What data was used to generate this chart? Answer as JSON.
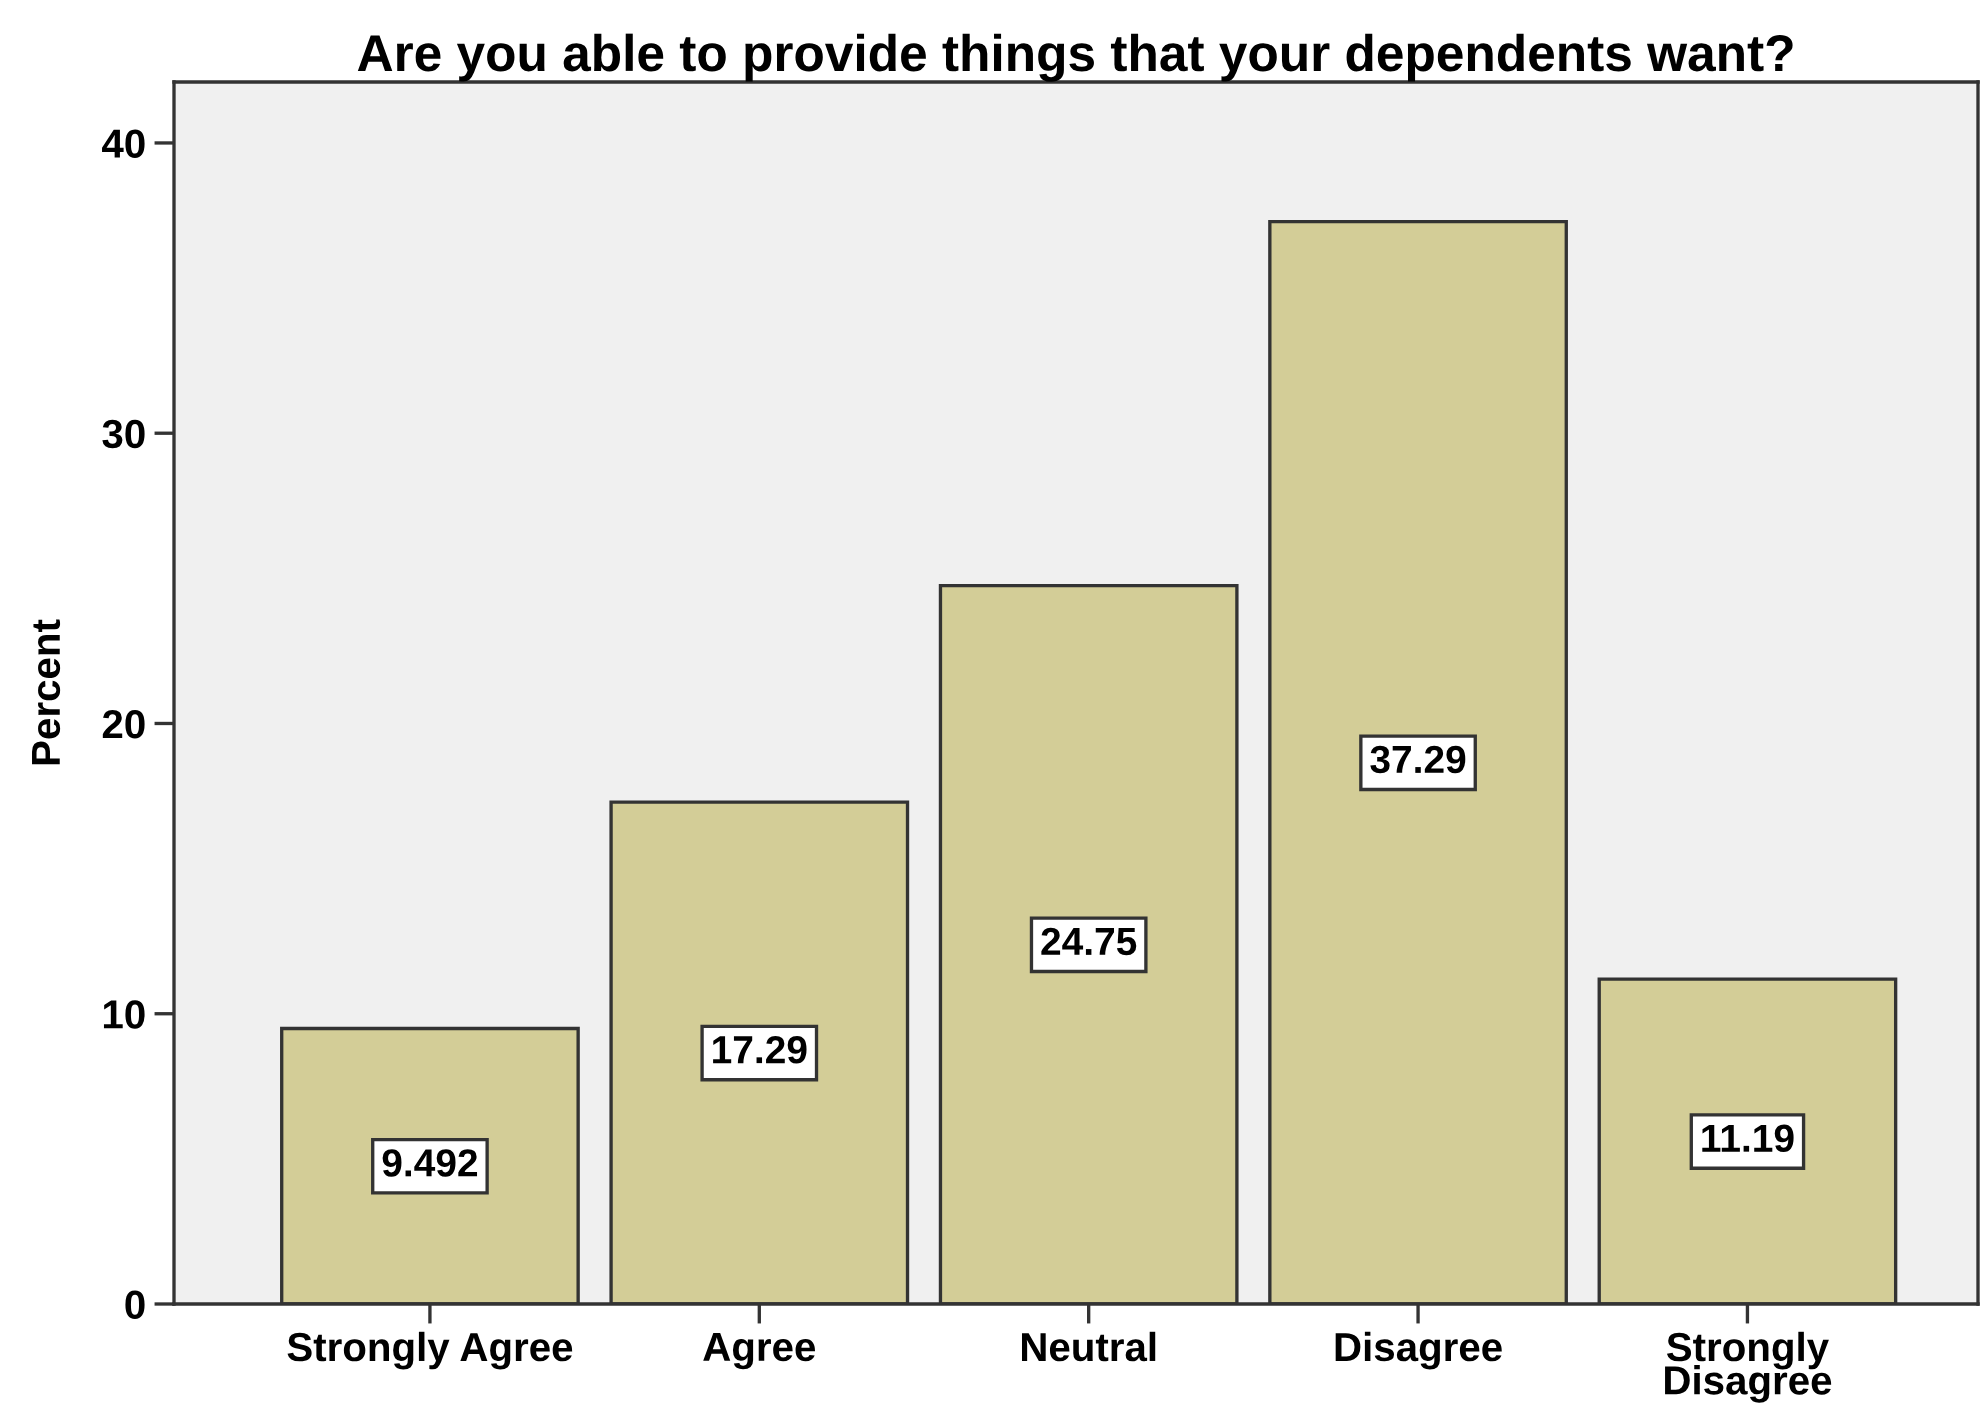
{
  "chart_data": {
    "type": "bar",
    "title": "Are you able to provide things that your dependents want?",
    "ylabel": "Percent",
    "categories": [
      "Strongly Agree",
      "Agree",
      "Neutral",
      "Disagree",
      "Strongly Disagree"
    ],
    "values": [
      9.492,
      17.29,
      24.75,
      37.29,
      11.19
    ],
    "color": "#d3cd97",
    "ylim": [
      0,
      42.1
    ],
    "yticks": [
      0,
      10,
      20,
      30,
      40
    ],
    "data_labels": true
  }
}
